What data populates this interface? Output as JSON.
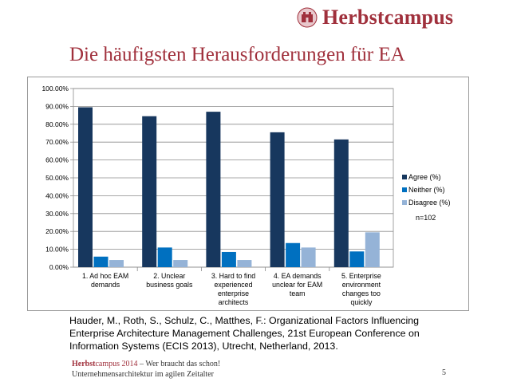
{
  "header": {
    "logo_text_part1": "Herbst",
    "logo_text_part2": "campus"
  },
  "slide": {
    "title": "Die häufigsten Herausforderungen für EA"
  },
  "chart_data": {
    "type": "bar",
    "categories": [
      [
        "1. Ad hoc EAM",
        "demands"
      ],
      [
        "2. Unclear",
        "business goals"
      ],
      [
        "3. Hard to find",
        "experienced",
        "enterprise",
        "architects"
      ],
      [
        "4. EA demands",
        "unclear for EAM",
        "team"
      ],
      [
        "5. Enterprise",
        "environment",
        "changes too",
        "quickly"
      ]
    ],
    "series": [
      {
        "name": "Agree (%)",
        "color": "#17375e",
        "values": [
          89.5,
          84.5,
          87.0,
          75.5,
          71.5
        ]
      },
      {
        "name": "Neither (%)",
        "color": "#0070c0",
        "values": [
          5.9,
          11.0,
          8.5,
          13.5,
          8.8
        ]
      },
      {
        "name": "Disagree (%)",
        "color": "#95b3d7",
        "values": [
          4.0,
          4.0,
          4.0,
          11.0,
          19.5
        ]
      }
    ],
    "y_ticks": [
      "0.00%",
      "10.00%",
      "20.00%",
      "30.00%",
      "40.00%",
      "50.00%",
      "60.00%",
      "70.00%",
      "80.00%",
      "90.00%",
      "100.00%"
    ],
    "ylim": [
      0,
      100
    ],
    "grid": true,
    "legend_position": "right",
    "note": "n=102"
  },
  "citation": {
    "text": "Hauder, M., Roth, S., Schulz, C., Matthes, F.: Organizational Factors Influencing Enterprise Architecture Management Challenges, 21st European Conference on Information Systems (ECIS 2013), Utrecht, Netherland, 2013."
  },
  "footer": {
    "brand_part1": "Herbst",
    "brand_part2": "campus",
    "year": "2014",
    "tagline": " – Wer braucht das schon!",
    "subtitle": "Unternehmensarchitektur im agilen Zeitalter",
    "page_number": "5"
  }
}
